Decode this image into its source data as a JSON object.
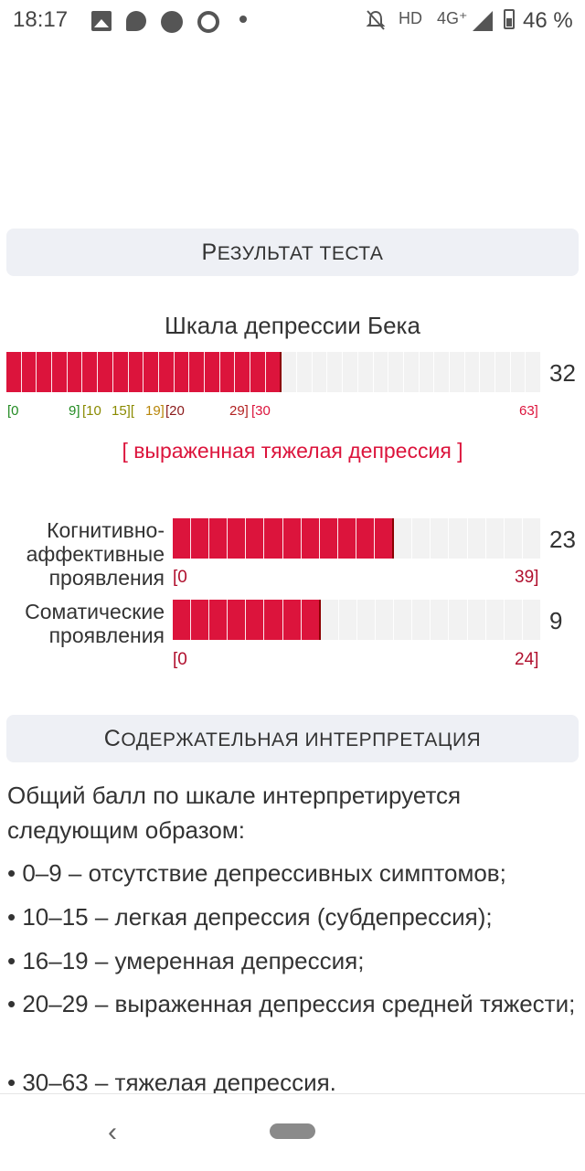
{
  "status_bar": {
    "time": "18:17",
    "network": "HD",
    "network_type": "4G⁺",
    "battery": "46 %",
    "icons": [
      "image-icon",
      "chat-icon",
      "app-icon",
      "app-icon-2",
      "dot-icon",
      "bell-off-icon",
      "signal-icon",
      "battery-icon"
    ]
  },
  "result_header": {
    "cap": "Р",
    "rest": "ЕЗУЛЬТАТ ТЕСТА"
  },
  "beck": {
    "title": "Шкала депрессии Бека",
    "score": "32",
    "fill_fraction": 0.5079,
    "cells_total": 35,
    "ticks": [
      {
        "text": "[0",
        "color": "#228b22"
      },
      {
        "text": "9]",
        "color": "#228b22"
      },
      {
        "text": "[10",
        "color": "#8a8a00"
      },
      {
        "text": "15][",
        "color": "#8a8a00"
      },
      {
        "text": "19]",
        "color": "#b8860b"
      },
      {
        "text": "[20",
        "color": "#8b1a1a"
      },
      {
        "text": "29]",
        "color": "#b22222"
      },
      {
        "text": "[30",
        "color": "#dc143c"
      },
      {
        "text": "63]",
        "color": "#dc143c"
      }
    ],
    "diagnosis": "[ выраженная тяжелая депрессия ]"
  },
  "subscales": [
    {
      "label_lines": [
        "Когнитивно-",
        "аффективные",
        "проявления"
      ],
      "score": "23",
      "min": "[0",
      "max": "39]",
      "fill_fraction": 0.5897,
      "cells_total": 20
    },
    {
      "label_lines": [
        "Соматические",
        "проявления"
      ],
      "score": "9",
      "min": "[0",
      "max": "24]",
      "fill_fraction": 0.375,
      "cells_total": 20
    }
  ],
  "interp_header": {
    "cap": "С",
    "rest": "ОДЕРЖАТЕЛЬНАЯ ИНТЕРПРЕТАЦИЯ"
  },
  "interpretation": {
    "intro": "Общий балл по шкале интерпретируется следующим образом:",
    "items": [
      "• 0–9 – отсутствие депрессивных симптомов;",
      "• 10–15 – легкая депрессия (субдепрессия);",
      "• 16–19 – умеренная депрессия;",
      "• 20–29 – выраженная депрессия средней тяжести;",
      "• 30–63 – тяжелая депрессия."
    ]
  },
  "navbar": {
    "back_glyph": "‹"
  },
  "colors": {
    "accent": "#dc143c",
    "empty": "#f2f2f2",
    "header_bg": "#eef0f5"
  }
}
